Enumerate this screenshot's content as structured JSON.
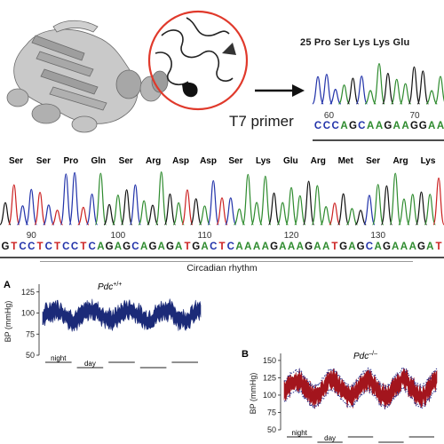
{
  "top_panel": {
    "aa_header": "25 Pro Ser Lys Lys Glu",
    "positions": [
      "60",
      "70"
    ],
    "primer_label": "T7 primer",
    "bases": [
      "C",
      "C",
      "C",
      "A",
      "G",
      "C",
      "A",
      "A",
      "G",
      "A",
      "A",
      "G",
      "G",
      "A",
      "A"
    ]
  },
  "middle_panel": {
    "aa_header": [
      "Ser",
      "Ser",
      "Pro",
      "Gln",
      "Ser",
      "Arg",
      "Asp",
      "Asp",
      "Ser",
      "Lys",
      "Glu",
      "Arg",
      "Met",
      "Ser",
      "Arg",
      "Lys"
    ],
    "positions": [
      "90",
      "100",
      "110",
      "120",
      "130"
    ],
    "bases": [
      "G",
      "T",
      "C",
      "C",
      "T",
      "C",
      "T",
      "C",
      "C",
      "T",
      "C",
      "A",
      "G",
      "A",
      "G",
      "C",
      "A",
      "G",
      "A",
      "G",
      "A",
      "T",
      "G",
      "A",
      "C",
      "T",
      "C",
      "A",
      "A",
      "A",
      "A",
      "G",
      "A",
      "A",
      "A",
      "G",
      "A",
      "A",
      "T",
      "G",
      "A",
      "G",
      "C",
      "A",
      "G",
      "A",
      "A",
      "A",
      "G",
      "A",
      "T"
    ]
  },
  "section_title": "Circadian rhythm",
  "panel_a": {
    "letter": "A",
    "genotype_base": "Pdc",
    "genotype_sup": "+/+",
    "y_axis_label": "BP (mmHg)",
    "y_ticks": [
      "125",
      "100",
      "75",
      "50"
    ],
    "night_label": "night",
    "day_label": "day",
    "fill_color": "#1b2a78"
  },
  "panel_b": {
    "letter": "B",
    "genotype_base": "Pdc",
    "genotype_sup": "–/–",
    "y_axis_label": "BP (mmHg)",
    "y_ticks": [
      "150",
      "125",
      "100",
      "75",
      "50"
    ],
    "night_label": "night",
    "day_label": "day",
    "fill_color": "#a3151d",
    "dot_color": "#2a2f8a"
  },
  "base_colors": {
    "A": "#2e8b2e",
    "C": "#2233aa",
    "G": "#111111",
    "T": "#cc2222"
  }
}
